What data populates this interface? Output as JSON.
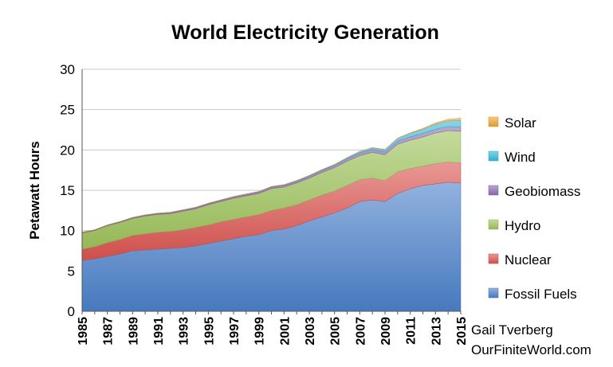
{
  "chart_data": {
    "type": "area",
    "stacked": true,
    "title": "World Electricity Generation",
    "xlabel": "",
    "ylabel": "Petawatt Hours",
    "ylim": [
      0,
      30
    ],
    "yticks": [
      0,
      5,
      10,
      15,
      20,
      25,
      30
    ],
    "grid": true,
    "legend_position": "right",
    "x": [
      1985,
      1986,
      1987,
      1988,
      1989,
      1990,
      1991,
      1992,
      1993,
      1994,
      1995,
      1996,
      1997,
      1998,
      1999,
      2000,
      2001,
      2002,
      2003,
      2004,
      2005,
      2006,
      2007,
      2008,
      2009,
      2010,
      2011,
      2012,
      2013,
      2014,
      2015
    ],
    "xtick_labels": [
      "1985",
      "1987",
      "1989",
      "1991",
      "1993",
      "1995",
      "1997",
      "1999",
      "2001",
      "2003",
      "2005",
      "2007",
      "2009",
      "2011",
      "2013",
      "2015"
    ],
    "series": [
      {
        "name": "Fossil Fuels",
        "color": "#4a7fc8",
        "values": [
          6.3,
          6.5,
          6.8,
          7.1,
          7.5,
          7.6,
          7.7,
          7.8,
          7.9,
          8.1,
          8.4,
          8.7,
          9.0,
          9.3,
          9.5,
          10.0,
          10.2,
          10.6,
          11.2,
          11.7,
          12.2,
          12.8,
          13.6,
          13.8,
          13.6,
          14.6,
          15.2,
          15.6,
          15.8,
          16.0,
          15.9
        ]
      },
      {
        "name": "Nuclear",
        "color": "#d9534f",
        "values": [
          1.4,
          1.5,
          1.7,
          1.8,
          1.9,
          2.0,
          2.1,
          2.1,
          2.2,
          2.3,
          2.3,
          2.4,
          2.4,
          2.4,
          2.5,
          2.5,
          2.6,
          2.6,
          2.6,
          2.7,
          2.7,
          2.8,
          2.7,
          2.7,
          2.6,
          2.7,
          2.5,
          2.4,
          2.5,
          2.5,
          2.5
        ]
      },
      {
        "name": "Hydro",
        "color": "#9dc25a",
        "values": [
          2.0,
          2.0,
          2.1,
          2.1,
          2.1,
          2.2,
          2.2,
          2.2,
          2.3,
          2.3,
          2.5,
          2.5,
          2.6,
          2.6,
          2.6,
          2.7,
          2.6,
          2.7,
          2.7,
          2.8,
          2.9,
          3.0,
          3.0,
          3.2,
          3.2,
          3.4,
          3.5,
          3.6,
          3.8,
          3.9,
          3.9
        ]
      },
      {
        "name": "Geobiomass",
        "color": "#8c6bb1",
        "values": [
          0.1,
          0.1,
          0.1,
          0.12,
          0.13,
          0.14,
          0.15,
          0.16,
          0.17,
          0.18,
          0.19,
          0.2,
          0.21,
          0.22,
          0.23,
          0.24,
          0.25,
          0.26,
          0.27,
          0.28,
          0.3,
          0.32,
          0.34,
          0.36,
          0.38,
          0.4,
          0.42,
          0.45,
          0.47,
          0.5,
          0.55
        ]
      },
      {
        "name": "Wind",
        "color": "#31b7d6",
        "values": [
          0,
          0,
          0,
          0,
          0,
          0.01,
          0.01,
          0.01,
          0.01,
          0.01,
          0.01,
          0.01,
          0.01,
          0.02,
          0.02,
          0.03,
          0.04,
          0.05,
          0.06,
          0.08,
          0.1,
          0.13,
          0.17,
          0.22,
          0.27,
          0.34,
          0.44,
          0.52,
          0.64,
          0.71,
          0.84
        ]
      },
      {
        "name": "Solar",
        "color": "#f0a030",
        "values": [
          0,
          0,
          0,
          0,
          0,
          0,
          0,
          0,
          0,
          0,
          0,
          0,
          0,
          0,
          0,
          0,
          0,
          0,
          0,
          0,
          0,
          0,
          0.01,
          0.01,
          0.02,
          0.03,
          0.06,
          0.1,
          0.13,
          0.19,
          0.25
        ]
      }
    ],
    "legend_order": [
      "Solar",
      "Wind",
      "Geobiomass",
      "Hydro",
      "Nuclear",
      "Fossil Fuels"
    ]
  },
  "credits": {
    "author": "Gail Tverberg",
    "site": "OurFiniteWorld.com"
  }
}
